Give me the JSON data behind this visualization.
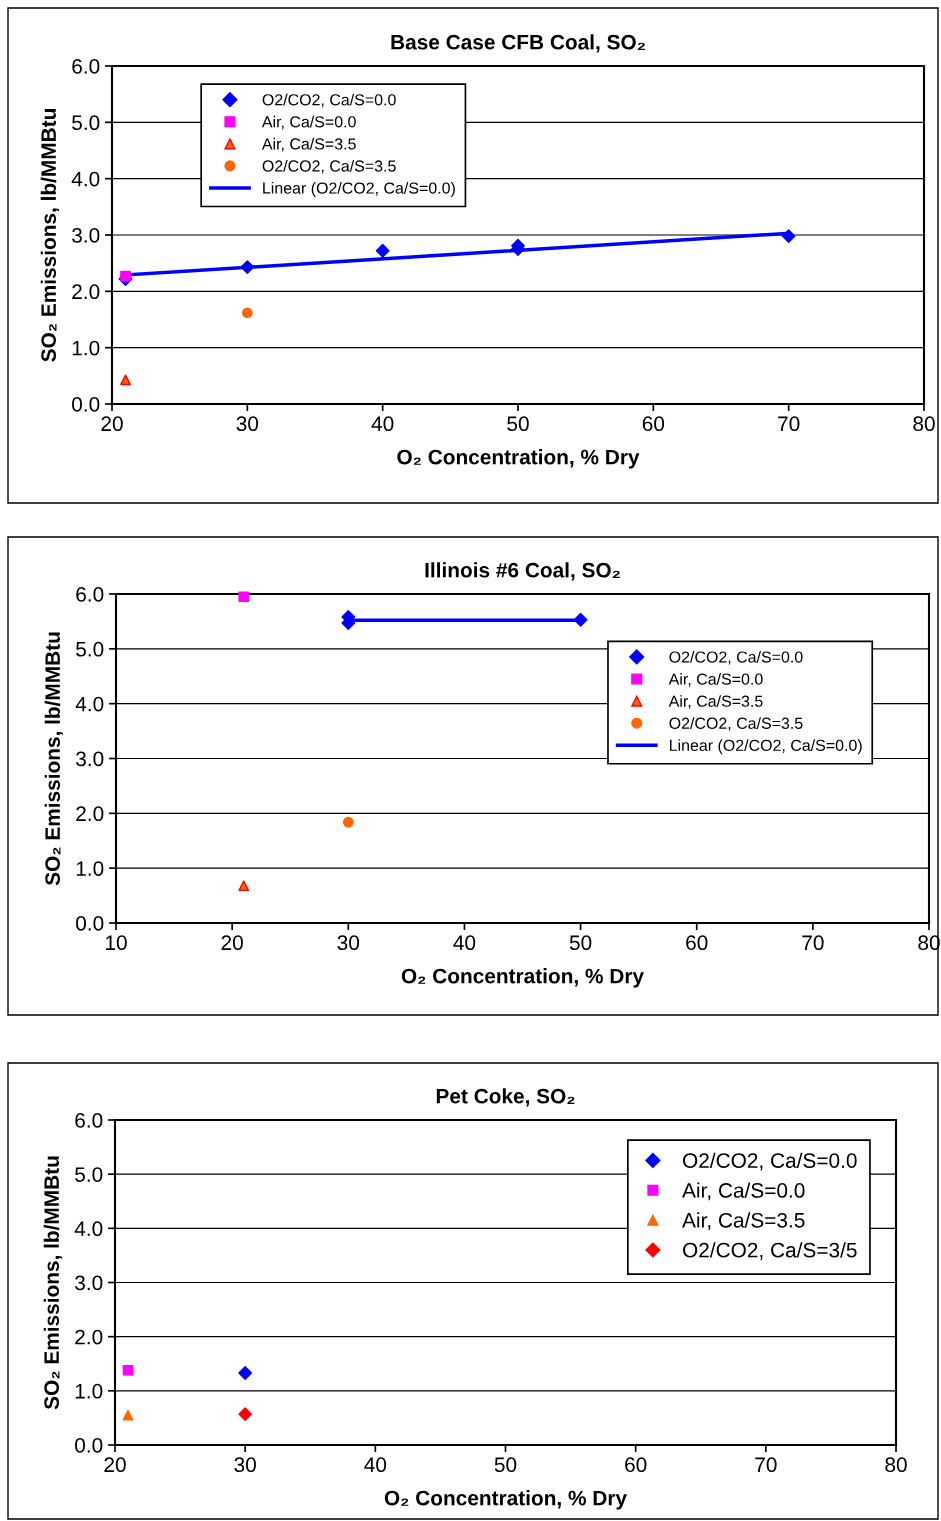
{
  "chart_data": [
    {
      "type": "scatter",
      "title": "Base Case CFB Coal, SO₂",
      "xlabel": "O₂ Concentration, % Dry",
      "ylabel": "SO₂ Emissions, lb/MMBtu",
      "xlim": [
        20,
        80
      ],
      "xticks": [
        20,
        30,
        40,
        50,
        60,
        70,
        80
      ],
      "ylim": [
        0,
        6
      ],
      "yticks": [
        {
          "value": 0,
          "label": "0.0"
        },
        {
          "value": 1,
          "label": "1.0"
        },
        {
          "value": 2,
          "label": "2.0"
        },
        {
          "value": 3,
          "label": "3.0"
        },
        {
          "value": 4,
          "label": "4.0"
        },
        {
          "value": 5,
          "label": "5.0"
        },
        {
          "value": 6,
          "label": "6.0"
        }
      ],
      "grid": "y",
      "legend": "top left",
      "series": [
        {
          "name": "O2/CO2, Ca/S=0.0",
          "color": "#0000ff",
          "marker": "diamond",
          "x": [
            21,
            30,
            40,
            50,
            50,
            70
          ],
          "values": [
            2.22,
            2.43,
            2.72,
            2.81,
            2.75,
            2.98
          ]
        },
        {
          "name": "Air, Ca/S=0.0",
          "color": "#ff00ff",
          "marker": "square",
          "x": [
            21
          ],
          "values": [
            2.27
          ]
        },
        {
          "name": "Air, Ca/S=3.5",
          "color": "#ff6600",
          "marker": "triangle",
          "x": [
            21
          ],
          "values": [
            0.43
          ]
        },
        {
          "name": "O2/CO2, Ca/S=3.5",
          "color": "#ff6600",
          "marker": "circle",
          "x": [
            30
          ],
          "values": [
            1.62
          ]
        },
        {
          "name": "Linear (O2/CO2, Ca/S=0.0)",
          "type": "line",
          "color": "#0000ff",
          "x": [
            21,
            70
          ],
          "values": [
            2.29,
            3.03
          ]
        }
      ]
    },
    {
      "type": "scatter",
      "title": "Illinois #6 Coal, SO₂",
      "xlabel": "O₂ Concentration, % Dry",
      "ylabel": "SO₂ Emissions, lb/MMBtu",
      "xlim": [
        10,
        80
      ],
      "xticks": [
        10,
        20,
        30,
        40,
        50,
        60,
        70,
        80
      ],
      "ylim": [
        0,
        6
      ],
      "yticks": [
        {
          "value": 0,
          "label": "0.0"
        },
        {
          "value": 1,
          "label": "1.0"
        },
        {
          "value": 2,
          "label": "2.0"
        },
        {
          "value": 3,
          "label": "3.0"
        },
        {
          "value": 4,
          "label": "4.0"
        },
        {
          "value": 5,
          "label": "5.0"
        },
        {
          "value": 6,
          "label": "6.0"
        }
      ],
      "grid": "y",
      "legend": "right",
      "series": [
        {
          "name": "O2/CO2, Ca/S=0.0",
          "color": "#0000ff",
          "marker": "diamond",
          "x": [
            30,
            30,
            50
          ],
          "values": [
            5.58,
            5.47,
            5.53
          ]
        },
        {
          "name": "Air, Ca/S=0.0",
          "color": "#ff00ff",
          "marker": "square",
          "x": [
            21
          ],
          "values": [
            5.95
          ]
        },
        {
          "name": "Air, Ca/S=3.5",
          "color": "#ff6600",
          "marker": "triangle",
          "x": [
            21
          ],
          "values": [
            0.68
          ]
        },
        {
          "name": "O2/CO2, Ca/S=3.5",
          "color": "#ff6600",
          "marker": "circle",
          "x": [
            30
          ],
          "values": [
            1.84
          ]
        },
        {
          "name": "Linear (O2/CO2, Ca/S=0.0)",
          "type": "line",
          "color": "#0000ff",
          "x": [
            30,
            50
          ],
          "values": [
            5.52,
            5.52
          ]
        }
      ]
    },
    {
      "type": "scatter",
      "title": "Pet Coke, SO₂",
      "xlabel": "O₂ Concentration, % Dry",
      "ylabel": "SO₂ Emissions, lb/MMBtu",
      "xlim": [
        20,
        80
      ],
      "xticks": [
        20,
        30,
        40,
        50,
        60,
        70,
        80
      ],
      "ylim": [
        0,
        6
      ],
      "yticks": [
        {
          "value": 0,
          "label": "0.0"
        },
        {
          "value": 1,
          "label": "1.0"
        },
        {
          "value": 2,
          "label": "2.0"
        },
        {
          "value": 3,
          "label": "3.0"
        },
        {
          "value": 4,
          "label": "4.0"
        },
        {
          "value": 5,
          "label": "5.0"
        },
        {
          "value": 6,
          "label": "6.0"
        }
      ],
      "grid": "y",
      "legend": "top right",
      "series": [
        {
          "name": "O2/CO2, Ca/S=0.0",
          "color": "#0000ff",
          "marker": "diamond",
          "x": [
            30
          ],
          "values": [
            1.33
          ]
        },
        {
          "name": "Air, Ca/S=0.0",
          "color": "#ff00ff",
          "marker": "square",
          "x": [
            21
          ],
          "values": [
            1.38
          ]
        },
        {
          "name": "Air, Ca/S=3.5",
          "color": "#ff6600",
          "marker": "triangle",
          "x": [
            21
          ],
          "values": [
            0.55
          ]
        },
        {
          "name": "O2/CO2, Ca/S=3/5",
          "color": "#ff0000",
          "marker": "diamond",
          "x": [
            30
          ],
          "values": [
            0.57
          ]
        }
      ]
    }
  ]
}
